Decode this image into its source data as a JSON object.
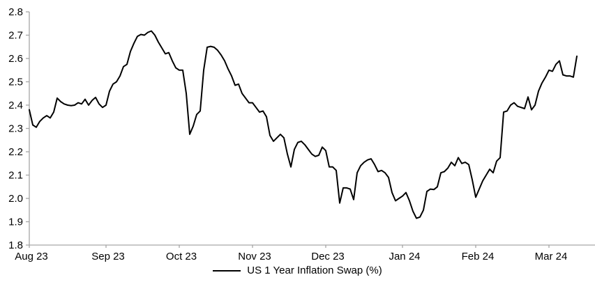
{
  "chart_data": {
    "type": "line",
    "title": "",
    "legend": {
      "position": "bottom-center",
      "label": "US 1 Year Inflation Swap (%)"
    },
    "ylim": [
      1.8,
      2.8
    ],
    "grid": false,
    "y_axis": {
      "tick_labels": [
        "2.8",
        "2.7",
        "2.6",
        "2.5",
        "2.4",
        "2.3",
        "2.2",
        "2.1",
        "2.0",
        "1.9",
        "1.8"
      ],
      "tick_values": [
        2.8,
        2.7,
        2.6,
        2.5,
        2.4,
        2.3,
        2.2,
        2.1,
        2.0,
        1.9,
        1.8
      ]
    },
    "x_axis": {
      "ticks": [
        {
          "label": "Aug 23",
          "index": 0
        },
        {
          "label": "Sep 23",
          "index": 22
        },
        {
          "label": "Oct 23",
          "index": 43
        },
        {
          "label": "Nov 23",
          "index": 64
        },
        {
          "label": "Dec 23",
          "index": 85
        },
        {
          "label": "Jan 24",
          "index": 107
        },
        {
          "label": "Feb 24",
          "index": 128
        },
        {
          "label": "Mar 24",
          "index": 149
        }
      ]
    },
    "series": [
      {
        "name": "US 1 Year Inflation Swap (%)",
        "values": [
          2.38,
          2.315,
          2.305,
          2.33,
          2.345,
          2.355,
          2.345,
          2.37,
          2.43,
          2.415,
          2.405,
          2.4,
          2.398,
          2.4,
          2.41,
          2.405,
          2.425,
          2.4,
          2.42,
          2.433,
          2.405,
          2.39,
          2.4,
          2.46,
          2.49,
          2.5,
          2.525,
          2.565,
          2.575,
          2.63,
          2.665,
          2.695,
          2.703,
          2.7,
          2.712,
          2.718,
          2.7,
          2.67,
          2.645,
          2.62,
          2.625,
          2.59,
          2.56,
          2.55,
          2.55,
          2.45,
          2.275,
          2.31,
          2.36,
          2.375,
          2.55,
          2.648,
          2.652,
          2.648,
          2.635,
          2.615,
          2.59,
          2.555,
          2.525,
          2.485,
          2.49,
          2.45,
          2.43,
          2.41,
          2.41,
          2.39,
          2.37,
          2.375,
          2.35,
          2.27,
          2.245,
          2.26,
          2.275,
          2.26,
          2.19,
          2.135,
          2.21,
          2.24,
          2.245,
          2.23,
          2.21,
          2.19,
          2.18,
          2.185,
          2.22,
          2.205,
          2.135,
          2.135,
          2.12,
          1.98,
          2.045,
          2.045,
          2.04,
          1.995,
          2.11,
          2.14,
          2.155,
          2.165,
          2.17,
          2.145,
          2.115,
          2.12,
          2.11,
          2.09,
          2.025,
          1.99,
          2.0,
          2.01,
          2.025,
          1.99,
          1.945,
          1.915,
          1.92,
          1.95,
          2.03,
          2.04,
          2.038,
          2.05,
          2.11,
          2.115,
          2.13,
          2.155,
          2.14,
          2.175,
          2.15,
          2.155,
          2.145,
          2.08,
          2.005,
          2.04,
          2.075,
          2.1,
          2.125,
          2.11,
          2.16,
          2.175,
          2.37,
          2.375,
          2.4,
          2.41,
          2.395,
          2.39,
          2.385,
          2.435,
          2.38,
          2.4,
          2.46,
          2.495,
          2.52,
          2.55,
          2.545,
          2.575,
          2.59,
          2.53,
          2.525,
          2.525,
          2.52,
          2.61
        ]
      }
    ],
    "colors": {
      "line": "#000000",
      "axis": "#a6a6a6",
      "text": "#000000"
    }
  }
}
